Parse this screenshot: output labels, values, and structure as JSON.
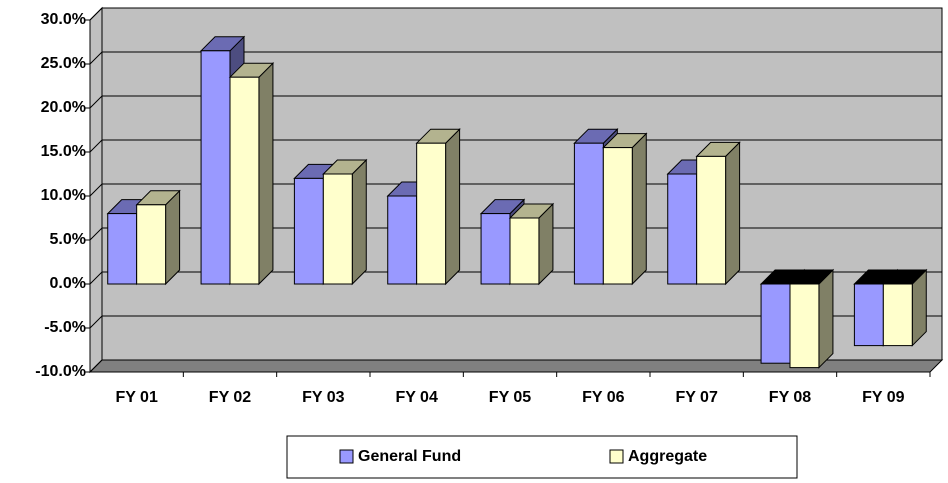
{
  "chart_data": {
    "type": "bar",
    "categories": [
      "FY 01",
      "FY 02",
      "FY 03",
      "FY 04",
      "FY 05",
      "FY 06",
      "FY 07",
      "FY 08",
      "FY 09"
    ],
    "series": [
      {
        "name": "General Fund",
        "color": "#9999ff",
        "values": [
          8,
          26.5,
          12,
          10,
          8,
          16,
          12.5,
          -9,
          -7
        ]
      },
      {
        "name": "Aggregate",
        "color": "#ffffcc",
        "values": [
          9,
          23.5,
          12.5,
          16,
          7.5,
          15.5,
          14.5,
          -9.5,
          -7
        ]
      }
    ],
    "ylim": [
      -10,
      30
    ],
    "yticks": [
      {
        "value": -10,
        "label": "-10.0%"
      },
      {
        "value": -5,
        "label": "-5.0%"
      },
      {
        "value": 0,
        "label": "0.0%"
      },
      {
        "value": 5,
        "label": "5.0%"
      },
      {
        "value": 10,
        "label": "10.0%"
      },
      {
        "value": 15,
        "label": "15.0%"
      },
      {
        "value": 20,
        "label": "20.0%"
      },
      {
        "value": 25,
        "label": "25.0%"
      },
      {
        "value": 30,
        "label": "30.0%"
      }
    ],
    "grid": true,
    "legend": "bottom"
  }
}
